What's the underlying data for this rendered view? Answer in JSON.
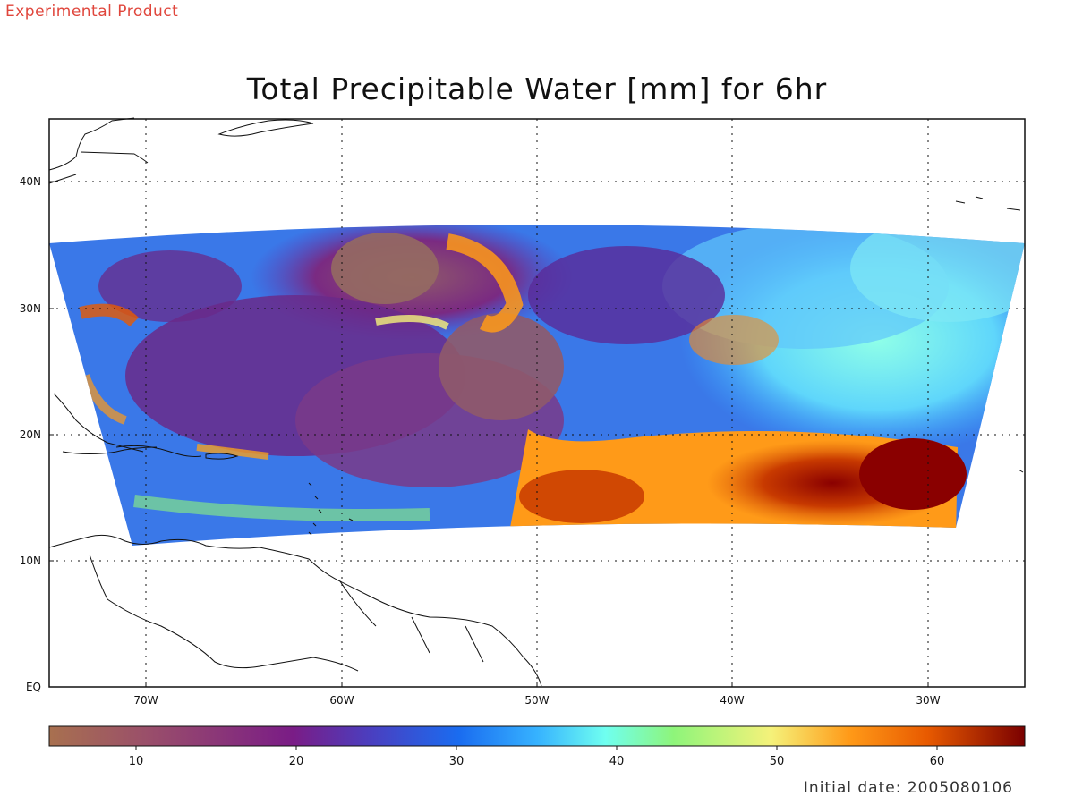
{
  "watermark": "Experimental Product",
  "title": "Total Precipitable Water [mm] for 6hr",
  "initial_date_text": "Initial date: 2005080106",
  "lat_labels": [
    "40N",
    "30N",
    "20N",
    "10N",
    "EQ"
  ],
  "lon_labels": [
    "70W",
    "60W",
    "50W",
    "40W",
    "30W"
  ],
  "colorbar": {
    "labels": [
      "10",
      "20",
      "30",
      "40",
      "50",
      "60"
    ],
    "stops": [
      "#a8704f",
      "#9a4f6a",
      "#7a1c86",
      "#4a3fc0",
      "#1a6cf0",
      "#36b2ff",
      "#6ffff0",
      "#8ef57a",
      "#f5f27a",
      "#ff9a18",
      "#e85a00",
      "#7a0000"
    ]
  },
  "colors": {
    "ocean_low": "#7a2a82",
    "ocean_mid": "#2a8cf0",
    "ocean_cyan": "#6fe0f8",
    "ocean_high": "#e86a10",
    "ocean_max": "#8a0000",
    "coast": "#111111"
  }
}
